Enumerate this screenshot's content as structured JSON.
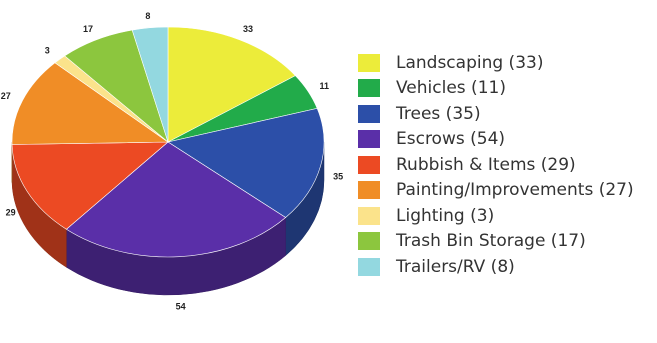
{
  "chart_data": {
    "type": "pie",
    "title": "",
    "three_d": true,
    "start_angle_deg": -90,
    "direction": "clockwise",
    "legend_position": "right",
    "slices": [
      {
        "name": "Landscaping",
        "value": 33,
        "value_label": "33",
        "legend_label": "Landscaping (33)",
        "color": "#ecec3a"
      },
      {
        "name": "Vehicles",
        "value": 11,
        "value_label": "11",
        "legend_label": "Vehicles (11)",
        "color": "#22ab4a"
      },
      {
        "name": "Trees",
        "value": 35,
        "value_label": "35",
        "legend_label": "Trees (35)",
        "color": "#2c4fa8"
      },
      {
        "name": "Escrows",
        "value": 54,
        "value_label": "54",
        "legend_label": "Escrows (54)",
        "color": "#5a2fa8"
      },
      {
        "name": "Rubbish & Items",
        "value": 29,
        "value_label": "29",
        "legend_label": "Rubbish & Items (29)",
        "color": "#ec4a23"
      },
      {
        "name": "Painting/Improvements",
        "value": 27,
        "value_label": "27",
        "legend_label": "Painting/Improvements (27)",
        "color": "#f08d26"
      },
      {
        "name": "Lighting",
        "value": 3,
        "value_label": "3",
        "legend_label": "Lighting (3)",
        "color": "#fbe38b"
      },
      {
        "name": "Trash Bin Storage",
        "value": 17,
        "value_label": "17",
        "legend_label": "Trash Bin Storage (17)",
        "color": "#8cc63e"
      },
      {
        "name": "Trailers/RV",
        "value": 8,
        "value_label": "8",
        "legend_label": "Trailers/RV (8)",
        "color": "#93d8e0"
      }
    ]
  }
}
